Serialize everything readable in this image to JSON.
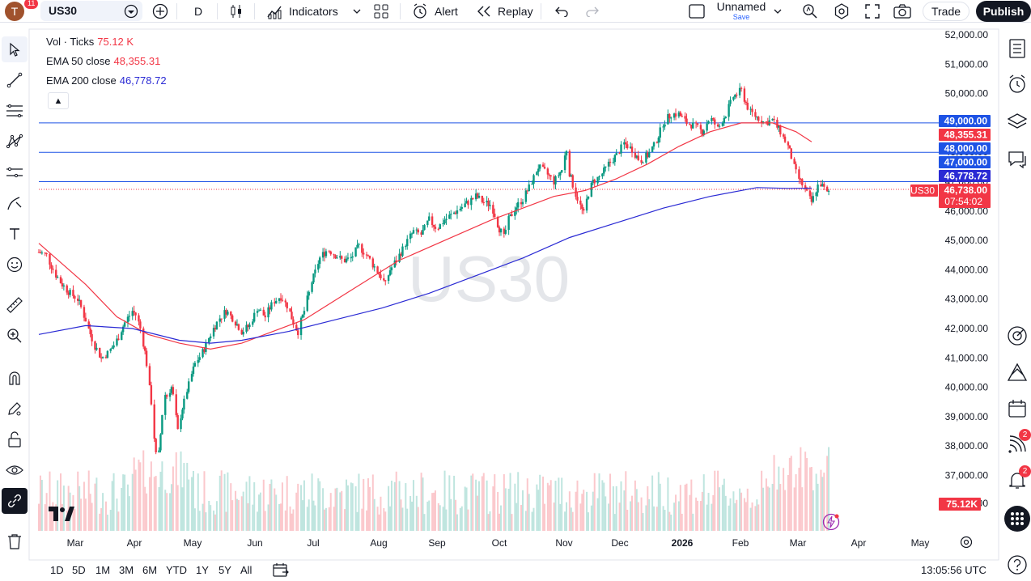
{
  "topbar": {
    "avatar_letter": "T",
    "notif_count": "11",
    "symbol": "US30",
    "interval": "D",
    "indicators_label": "Indicators",
    "alert_label": "Alert",
    "replay_label": "Replay",
    "layout_name": "Unnamed",
    "layout_save": "Save",
    "trade_label": "Trade",
    "publish_label": "Publish"
  },
  "legend": {
    "vol_label": "Vol · Ticks",
    "vol_value": "75.12 K",
    "ema50_label": "EMA 50 close",
    "ema50_value": "48,355.31",
    "ema200_label": "EMA 200 close",
    "ema200_value": "46,778.72",
    "collapse_icon": "chevron-up"
  },
  "watermark": "US30",
  "price_axis": [
    "52,000.00",
    "51,000.00",
    "50,000.00",
    "49,000.00",
    "48,000.00",
    "47,000.00",
    "46,000.00",
    "45,000.00",
    "44,000.00",
    "43,000.00",
    "42,000.00",
    "41,000.00",
    "40,000.00",
    "39,000.00",
    "38,000.00",
    "37,000.00"
  ],
  "price_axis_partial": "36,000.00",
  "time_axis": [
    "Mar",
    "Apr",
    "May",
    "Jun",
    "Jul",
    "Aug",
    "Sep",
    "Oct",
    "Nov",
    "Dec",
    "2026",
    "Feb",
    "Mar",
    "Apr",
    "May"
  ],
  "price_labels": {
    "h1": "49,000.00",
    "h2": "48,000.00",
    "h3": "47,000.00",
    "ema50": "48,355.31",
    "ema200": "46,778.72",
    "last": "46,738.00",
    "countdown": "07:54:02",
    "symbol_tag": "US30",
    "volume": "75.12K"
  },
  "timeframes": [
    "1D",
    "5D",
    "1M",
    "3M",
    "6M",
    "YTD",
    "1Y",
    "5Y",
    "All"
  ],
  "clock": "13:05:56 UTC",
  "logo_text": "17",
  "right_badges": {
    "feed": "2",
    "notify": "2"
  },
  "colors": {
    "up": "#089981",
    "down": "#f23645",
    "ema50": "#f23645",
    "ema200": "#2a2ad4",
    "hline": "#1e53e5",
    "accent": "#2962ff"
  },
  "chart_data": {
    "type": "candlestick",
    "y_range": [
      36000,
      52500
    ],
    "daily_close_path": [
      [
        0,
        44600
      ],
      [
        5,
        44500
      ],
      [
        10,
        43900
      ],
      [
        15,
        43500
      ],
      [
        20,
        43200
      ],
      [
        25,
        43000
      ],
      [
        30,
        42300
      ],
      [
        35,
        41500
      ],
      [
        40,
        41000
      ],
      [
        45,
        41200
      ],
      [
        50,
        41600
      ],
      [
        55,
        42200
      ],
      [
        60,
        42600
      ],
      [
        63,
        42400
      ],
      [
        66,
        41800
      ],
      [
        68,
        41200
      ],
      [
        70,
        40400
      ],
      [
        72,
        39500
      ],
      [
        74,
        38300
      ],
      [
        76,
        37100
      ],
      [
        78,
        38400
      ],
      [
        80,
        39800
      ],
      [
        82,
        39700
      ],
      [
        85,
        40000
      ],
      [
        87,
        39400
      ],
      [
        89,
        38500
      ],
      [
        92,
        39300
      ],
      [
        95,
        39900
      ],
      [
        100,
        40800
      ],
      [
        105,
        41200
      ],
      [
        110,
        41800
      ],
      [
        115,
        42300
      ],
      [
        120,
        42600
      ],
      [
        125,
        42300
      ],
      [
        130,
        41900
      ],
      [
        135,
        42100
      ],
      [
        140,
        42700
      ],
      [
        145,
        42400
      ],
      [
        150,
        42900
      ],
      [
        155,
        43100
      ],
      [
        160,
        42700
      ],
      [
        163,
        42200
      ],
      [
        166,
        41900
      ],
      [
        170,
        42600
      ],
      [
        175,
        43600
      ],
      [
        180,
        44400
      ],
      [
        185,
        44700
      ],
      [
        190,
        44500
      ],
      [
        195,
        44300
      ],
      [
        200,
        44400
      ],
      [
        205,
        44800
      ],
      [
        210,
        44500
      ],
      [
        215,
        44100
      ],
      [
        220,
        43700
      ],
      [
        222,
        43500
      ],
      [
        225,
        44000
      ],
      [
        230,
        44400
      ],
      [
        235,
        44900
      ],
      [
        240,
        45300
      ],
      [
        245,
        45200
      ],
      [
        250,
        45700
      ],
      [
        255,
        45400
      ],
      [
        260,
        45700
      ],
      [
        265,
        45900
      ],
      [
        270,
        46100
      ],
      [
        275,
        46300
      ],
      [
        280,
        46500
      ],
      [
        285,
        46300
      ],
      [
        290,
        46200
      ],
      [
        295,
        45400
      ],
      [
        298,
        45100
      ],
      [
        300,
        45600
      ],
      [
        305,
        46100
      ],
      [
        310,
        46400
      ],
      [
        315,
        46900
      ],
      [
        320,
        47500
      ],
      [
        325,
        47300
      ],
      [
        330,
        47000
      ],
      [
        335,
        47400
      ],
      [
        338,
        48100
      ],
      [
        340,
        47300
      ],
      [
        343,
        46700
      ],
      [
        346,
        46300
      ],
      [
        349,
        45900
      ],
      [
        352,
        46600
      ],
      [
        355,
        47000
      ],
      [
        360,
        47200
      ],
      [
        365,
        47600
      ],
      [
        370,
        47900
      ],
      [
        375,
        48300
      ],
      [
        380,
        48100
      ],
      [
        385,
        47700
      ],
      [
        390,
        47900
      ],
      [
        395,
        48300
      ],
      [
        400,
        49000
      ],
      [
        405,
        49300
      ],
      [
        410,
        49300
      ],
      [
        415,
        49000
      ],
      [
        420,
        48900
      ],
      [
        425,
        48700
      ],
      [
        430,
        49200
      ],
      [
        435,
        48800
      ],
      [
        440,
        49300
      ],
      [
        445,
        49900
      ],
      [
        450,
        50100
      ],
      [
        455,
        49400
      ],
      [
        460,
        49200
      ],
      [
        465,
        49000
      ],
      [
        470,
        49100
      ],
      [
        475,
        48700
      ],
      [
        480,
        48200
      ],
      [
        485,
        47300
      ],
      [
        490,
        46800
      ],
      [
        495,
        46300
      ],
      [
        500,
        47000
      ],
      [
        505,
        46600
      ],
      [
        507,
        46740
      ]
    ],
    "ema50": [
      [
        0,
        44900
      ],
      [
        30,
        43500
      ],
      [
        50,
        42400
      ],
      [
        70,
        41800
      ],
      [
        90,
        41500
      ],
      [
        110,
        41300
      ],
      [
        130,
        41500
      ],
      [
        150,
        41900
      ],
      [
        170,
        42300
      ],
      [
        200,
        43300
      ],
      [
        230,
        44300
      ],
      [
        260,
        45000
      ],
      [
        290,
        45700
      ],
      [
        310,
        46100
      ],
      [
        330,
        46500
      ],
      [
        350,
        46700
      ],
      [
        370,
        47100
      ],
      [
        390,
        47600
      ],
      [
        410,
        48200
      ],
      [
        430,
        48700
      ],
      [
        450,
        49000
      ],
      [
        470,
        49000
      ],
      [
        485,
        48700
      ],
      [
        495,
        48355
      ]
    ],
    "ema200": [
      [
        0,
        41800
      ],
      [
        30,
        42100
      ],
      [
        60,
        42000
      ],
      [
        90,
        41600
      ],
      [
        110,
        41500
      ],
      [
        130,
        41600
      ],
      [
        160,
        41900
      ],
      [
        190,
        42300
      ],
      [
        220,
        42700
      ],
      [
        250,
        43200
      ],
      [
        280,
        43800
      ],
      [
        310,
        44400
      ],
      [
        340,
        45100
      ],
      [
        370,
        45600
      ],
      [
        400,
        46100
      ],
      [
        430,
        46500
      ],
      [
        460,
        46800
      ],
      [
        480,
        46770
      ],
      [
        495,
        46779
      ]
    ],
    "hlines": [
      49000,
      48000,
      47000
    ],
    "last_price": 46738,
    "volume_latest": "75.12K"
  }
}
